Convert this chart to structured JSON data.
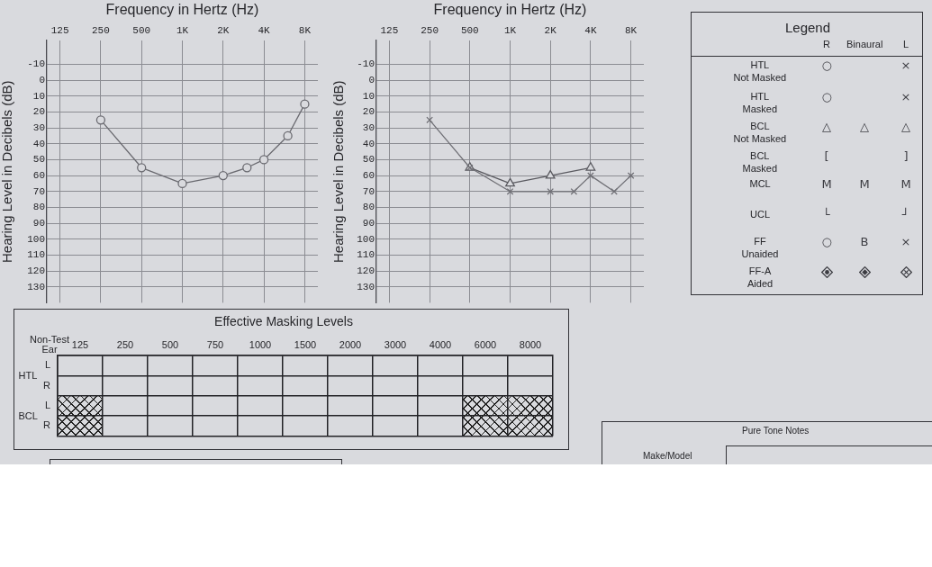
{
  "chart_data": [
    {
      "type": "line",
      "xlabel": "Frequency in Hertz (Hz)",
      "ylabel": "Hearing Level in Decibels (dB)",
      "x": [
        250,
        500,
        1000,
        2000,
        3000,
        4000,
        6000,
        8000
      ],
      "series": [
        {
          "color": "#6a6a70",
          "marker": "circle",
          "values": [
            25,
            55,
            65,
            60,
            55,
            50,
            35,
            15
          ]
        }
      ],
      "xlim": [
        100,
        10000
      ],
      "ylim": [
        140,
        -25
      ],
      "xticks": [
        125,
        250,
        500,
        {
          "value": 1000,
          "label": "1K"
        },
        {
          "value": 2000,
          "label": "2K"
        },
        {
          "value": 4000,
          "label": "4K"
        },
        {
          "value": 8000,
          "label": "8K"
        }
      ],
      "yticks": [
        -10,
        0,
        10,
        20,
        30,
        40,
        50,
        60,
        70,
        80,
        90,
        100,
        110,
        120,
        130
      ],
      "log": "x",
      "grid": true,
      "line_style": "solid"
    },
    {
      "type": "line",
      "xlabel": "Frequency in Hertz (Hz)",
      "ylabel": "Hearing Level in Decibels (dB)",
      "x": [
        250,
        500,
        1000,
        2000,
        3000,
        4000,
        6000,
        8000
      ],
      "series": [
        {
          "color": "#707076",
          "marker": "cross",
          "values": [
            25,
            55,
            70,
            70,
            70,
            60,
            70,
            60
          ]
        },
        {
          "color": "#5a5a60",
          "marker": "triangle",
          "x": [
            500,
            1000,
            2000,
            4000
          ],
          "values": [
            55,
            65,
            60,
            55
          ]
        }
      ],
      "xlim": [
        100,
        10000
      ],
      "ylim": [
        140,
        -25
      ],
      "xticks": [
        125,
        250,
        500,
        {
          "value": 1000,
          "label": "1K"
        },
        {
          "value": 2000,
          "label": "2K"
        },
        {
          "value": 4000,
          "label": "4K"
        },
        {
          "value": 8000,
          "label": "8K"
        }
      ],
      "yticks": [
        -10,
        0,
        10,
        20,
        30,
        40,
        50,
        60,
        70,
        80,
        90,
        100,
        110,
        120,
        130
      ],
      "log": "x",
      "grid": true,
      "line_style": "solid"
    },
    {
      "type": "other",
      "title": "Legend",
      "annotations": [
        "R",
        "Binaural",
        "L",
        "HTL\nNot Masked",
        "○",
        "×",
        "HTL\nMasked",
        "○",
        "×",
        "BCL\nNot Masked",
        "△",
        "△",
        "△",
        "BCL\nMasked",
        "[",
        "]",
        "MCL",
        "M",
        "M",
        "M",
        "UCL",
        "└",
        "┘",
        "FF\nUnaided",
        "○",
        "B",
        "×",
        "FF-A\nAided"
      ]
    },
    {
      "type": "heatmap",
      "title": "Effective Masking Levels",
      "categories": [
        "125",
        "250",
        "500",
        "750",
        "1000",
        "1500",
        "2000",
        "3000",
        "4000",
        "6000",
        "8000"
      ],
      "y_categories": [
        "L",
        "R",
        "L",
        "R"
      ],
      "cells": [
        [
          null,
          null,
          null,
          null,
          null,
          null,
          null,
          null,
          null,
          null,
          null
        ],
        [
          null,
          null,
          null,
          null,
          null,
          null,
          null,
          null,
          null,
          null,
          null
        ],
        [
          null,
          null,
          null,
          null,
          null,
          null,
          null,
          null,
          null,
          null,
          null
        ],
        [
          null,
          null,
          null,
          null,
          null,
          null,
          null,
          null,
          null,
          null,
          null
        ]
      ],
      "grid": true,
      "annotations": [
        "Non-Test\nEar",
        "HTL",
        "BCL"
      ]
    },
    {
      "type": "other",
      "title": "Pure Tone Notes",
      "annotations": [
        "Make/Model"
      ]
    }
  ]
}
